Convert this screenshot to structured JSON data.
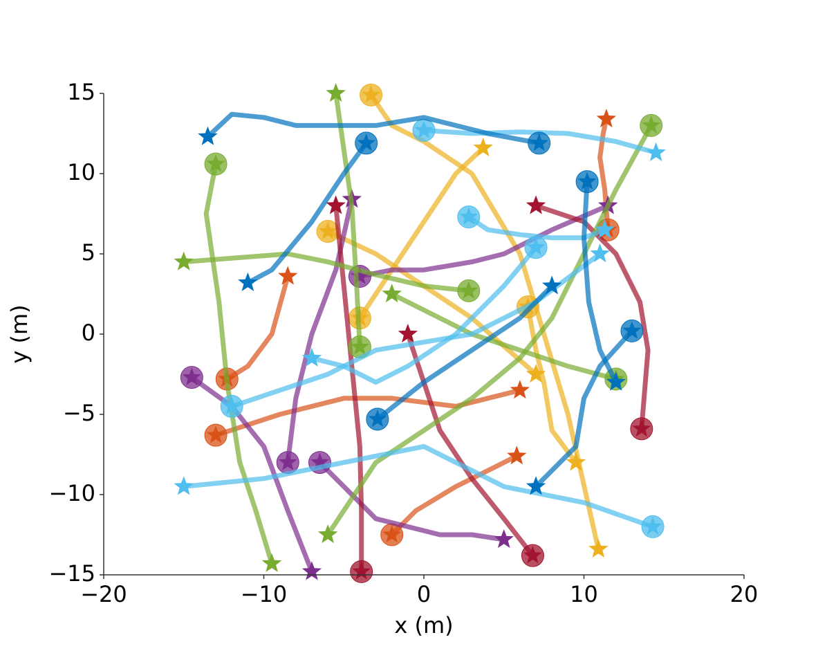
{
  "chart_data": {
    "type": "line",
    "xlabel": "x (m)",
    "ylabel": "y (m)",
    "xlim": [
      -20,
      20
    ],
    "ylim": [
      -15,
      15
    ],
    "xticks": [
      {
        "value": -20,
        "label": "−20"
      },
      {
        "value": -10,
        "label": "−10"
      },
      0,
      10,
      20
    ],
    "yticks": [
      {
        "value": -15,
        "label": "−15"
      },
      {
        "value": -10,
        "label": "−10"
      },
      {
        "value": -5,
        "label": "−5"
      },
      0,
      5,
      10,
      15
    ],
    "series": [
      {
        "color": "#d95319",
        "x": [
          -13,
          -9,
          -5,
          -2,
          2,
          6
        ],
        "values": [
          -6.3,
          -5,
          -4,
          -4,
          -4.5,
          -3.5
        ]
      },
      {
        "color": "#d95319",
        "x": [
          -12.3,
          -11,
          -9.5,
          -8.5
        ],
        "values": [
          -2.8,
          -2,
          0,
          3.6
        ]
      },
      {
        "color": "#d95319",
        "x": [
          11.5,
          11.3,
          11,
          11.2,
          11.4
        ],
        "values": [
          6.5,
          9,
          11,
          12.5,
          13.4
        ]
      },
      {
        "color": "#d95319",
        "x": [
          -2,
          -0.5,
          2,
          4,
          5.8
        ],
        "values": [
          -12.5,
          -11,
          -9.5,
          -8.5,
          -7.6
        ]
      },
      {
        "color": "#edb120",
        "x": [
          -3.3,
          -2,
          0,
          3,
          6,
          9,
          10.9
        ],
        "values": [
          14.9,
          13,
          12,
          10,
          5,
          -5,
          -13.4
        ]
      },
      {
        "color": "#edb120",
        "x": [
          -6,
          -3,
          0,
          3,
          7
        ],
        "values": [
          6.4,
          5,
          3,
          1,
          -2.5
        ]
      },
      {
        "color": "#edb120",
        "x": [
          -4,
          -2,
          0,
          2,
          3.7
        ],
        "values": [
          1,
          4,
          7,
          10,
          11.6
        ]
      },
      {
        "color": "#edb120",
        "x": [
          6.5,
          7,
          7.5,
          8,
          9.5
        ],
        "values": [
          1.7,
          -1,
          -3,
          -6,
          -8
        ]
      },
      {
        "color": "#7e2f8e",
        "x": [
          -6.5,
          -5,
          -4,
          -3,
          -1,
          1,
          3,
          5
        ],
        "values": [
          -8,
          -9.5,
          -10.5,
          -11.5,
          -12,
          -12.5,
          -12.5,
          -12.8
        ]
      },
      {
        "color": "#7e2f8e",
        "x": [
          -14.5,
          -12,
          -10,
          -8.5,
          -7
        ],
        "values": [
          -2.7,
          -4.5,
          -7,
          -11,
          -14.8
        ]
      },
      {
        "color": "#7e2f8e",
        "x": [
          -8.5,
          -8,
          -7,
          -5.5,
          -4.5
        ],
        "values": [
          -8,
          -4,
          0,
          4,
          8.4
        ]
      },
      {
        "color": "#7e2f8e",
        "x": [
          -4,
          -2,
          0,
          3,
          5,
          8,
          11.5
        ],
        "values": [
          3.6,
          4,
          4,
          4.5,
          5,
          6.5,
          8
        ]
      },
      {
        "color": "#a2142f",
        "x": [
          -3.9,
          -3.9,
          -4,
          -4.5,
          -5,
          -5.5
        ],
        "values": [
          -14.8,
          -11,
          -7,
          -2,
          3,
          8
        ]
      },
      {
        "color": "#a2142f",
        "x": [
          13.6,
          14,
          13.5,
          12,
          10,
          7
        ],
        "values": [
          -5.9,
          -1,
          2,
          5,
          7,
          8
        ]
      },
      {
        "color": "#a2142f",
        "x": [
          6.8,
          5,
          3,
          1,
          0,
          -1
        ],
        "values": [
          -13.8,
          -11.5,
          -9,
          -6,
          -3,
          0
        ]
      },
      {
        "color": "#77ac30",
        "x": [
          12,
          9,
          6,
          3,
          0,
          -2
        ],
        "values": [
          -2.8,
          -2,
          -1,
          0,
          1.5,
          2.5
        ]
      },
      {
        "color": "#77ac30",
        "x": [
          2.8,
          0,
          -3,
          -6,
          -8.5,
          -15
        ],
        "values": [
          2.7,
          3,
          3.7,
          4.5,
          5,
          4.5
        ]
      },
      {
        "color": "#77ac30",
        "x": [
          -4,
          -4.2,
          -4.5,
          -5.5
        ],
        "values": [
          -0.8,
          3,
          8,
          15
        ]
      },
      {
        "color": "#77ac30",
        "x": [
          14.2,
          12,
          10,
          8,
          6,
          3,
          0,
          -3,
          -6
        ],
        "values": [
          13,
          9,
          5,
          1,
          -1.5,
          -4,
          -6,
          -8,
          -12.5
        ]
      },
      {
        "color": "#77ac30",
        "x": [
          -13,
          -13.6,
          -12.8,
          -12.3,
          -11.5,
          -10.5,
          -9.5
        ],
        "values": [
          10.6,
          7.5,
          2,
          -3,
          -8,
          -11,
          -14.3
        ]
      },
      {
        "color": "#4dbeee",
        "x": [
          0,
          3,
          6,
          9,
          12,
          14.5
        ],
        "values": [
          12.7,
          12.5,
          12.6,
          12.5,
          12,
          11.3
        ]
      },
      {
        "color": "#4dbeee",
        "x": [
          14.3,
          10,
          5,
          0,
          -5,
          -10,
          -15
        ],
        "values": [
          -12,
          -10.5,
          -9.5,
          -7,
          -8,
          -9,
          -9.5
        ]
      },
      {
        "color": "#4dbeee",
        "x": [
          7,
          5,
          2,
          -1,
          -3,
          -5,
          -7
        ],
        "values": [
          5.4,
          3,
          0,
          -2,
          -3,
          -2,
          -1.5
        ]
      },
      {
        "color": "#4dbeee",
        "x": [
          2.8,
          4,
          6,
          8,
          10,
          11.3
        ],
        "values": [
          7.3,
          6.5,
          6.2,
          6,
          6,
          6.5
        ]
      },
      {
        "color": "#4dbeee",
        "x": [
          -12,
          -9,
          -6,
          -3,
          0,
          3,
          7,
          11
        ],
        "values": [
          -4.5,
          -3.5,
          -2.5,
          -1,
          -0.5,
          0,
          2,
          5
        ]
      },
      {
        "color": "#0072bd",
        "x": [
          7.2,
          4,
          0,
          -3,
          -8,
          -10,
          -12,
          -13.5
        ],
        "values": [
          11.9,
          12.5,
          13.5,
          13,
          13,
          13.5,
          13.7,
          12.3
        ]
      },
      {
        "color": "#0072bd",
        "x": [
          13,
          11,
          10,
          9.5,
          8,
          7
        ],
        "values": [
          0.2,
          -2,
          -4,
          -7,
          -8.5,
          -9.5
        ]
      },
      {
        "color": "#0072bd",
        "x": [
          10.2,
          10,
          10.3,
          11,
          12
        ],
        "values": [
          9.5,
          6,
          2,
          -1,
          -3
        ]
      },
      {
        "color": "#0072bd",
        "x": [
          -2.9,
          0,
          3,
          6,
          8
        ],
        "values": [
          -5.3,
          -3,
          -1,
          1,
          3
        ]
      },
      {
        "color": "#0072bd",
        "x": [
          -3.6,
          -5,
          -7,
          -9.5,
          -11
        ],
        "values": [
          11.9,
          10,
          7,
          4,
          3.2
        ]
      }
    ]
  }
}
